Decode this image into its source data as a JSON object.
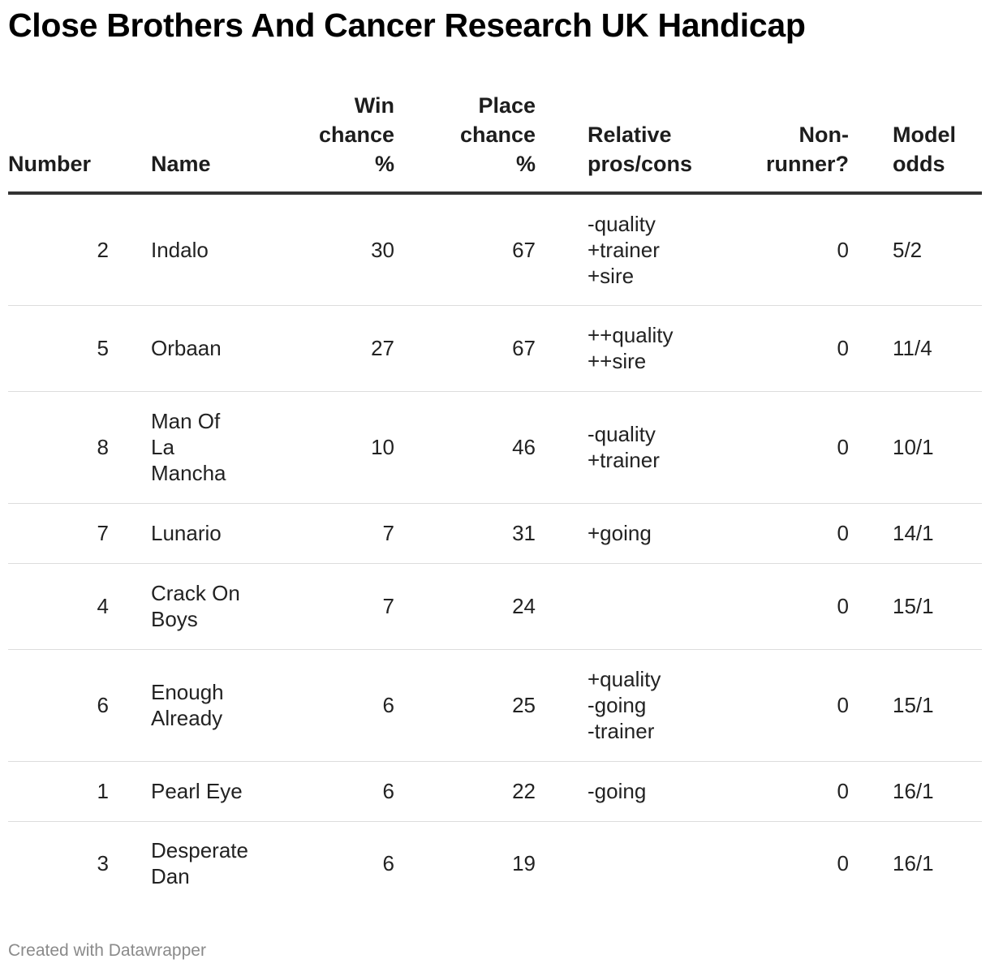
{
  "title": "Close Brothers And Cancer Research UK Handicap",
  "chart_data": {
    "type": "table",
    "title": "Close Brothers And Cancer Research UK Handicap",
    "columns": [
      [
        "Number"
      ],
      [
        "Name"
      ],
      [
        "Win",
        "chance",
        "%"
      ],
      [
        "Place",
        "chance",
        "%"
      ],
      [
        "Relative",
        "pros/cons"
      ],
      [
        "Non-",
        "runner?"
      ],
      [
        "Model",
        "odds"
      ]
    ],
    "rows": [
      {
        "number": "2",
        "name": [
          "Indalo"
        ],
        "win": "30",
        "place": "67",
        "proscons": [
          "-quality",
          "+trainer",
          "+sire"
        ],
        "nonrunner": "0",
        "odds": "5/2"
      },
      {
        "number": "5",
        "name": [
          "Orbaan"
        ],
        "win": "27",
        "place": "67",
        "proscons": [
          "++quality",
          "++sire"
        ],
        "nonrunner": "0",
        "odds": "11/4"
      },
      {
        "number": "8",
        "name": [
          "Man Of",
          "La",
          "Mancha"
        ],
        "win": "10",
        "place": "46",
        "proscons": [
          "-quality",
          "+trainer"
        ],
        "nonrunner": "0",
        "odds": "10/1"
      },
      {
        "number": "7",
        "name": [
          "Lunario"
        ],
        "win": "7",
        "place": "31",
        "proscons": [
          "+going"
        ],
        "nonrunner": "0",
        "odds": "14/1"
      },
      {
        "number": "4",
        "name": [
          "Crack On",
          "Boys"
        ],
        "win": "7",
        "place": "24",
        "proscons": [],
        "nonrunner": "0",
        "odds": "15/1"
      },
      {
        "number": "6",
        "name": [
          "Enough",
          "Already"
        ],
        "win": "6",
        "place": "25",
        "proscons": [
          "+quality",
          "-going",
          "-trainer"
        ],
        "nonrunner": "0",
        "odds": "15/1"
      },
      {
        "number": "1",
        "name": [
          "Pearl Eye"
        ],
        "win": "6",
        "place": "22",
        "proscons": [
          "-going"
        ],
        "nonrunner": "0",
        "odds": "16/1"
      },
      {
        "number": "3",
        "name": [
          "Desperate",
          "Dan"
        ],
        "win": "6",
        "place": "19",
        "proscons": [],
        "nonrunner": "0",
        "odds": "16/1"
      }
    ]
  },
  "footer": "Created with Datawrapper"
}
